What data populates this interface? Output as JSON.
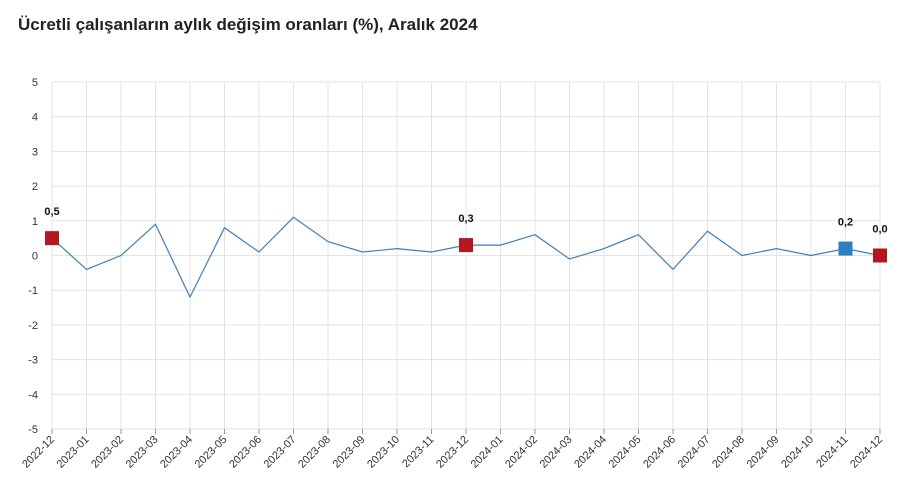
{
  "title": "Ücretli çalışanların aylık değişim oranları (%), Aralık 2024",
  "colors": {
    "line": "#3f7fbd",
    "highlight_red": "#b2181f",
    "highlight_blue": "#2f7ec3",
    "grid": "#e3e3e3"
  },
  "chart_data": {
    "type": "line",
    "title": "Ücretli çalışanların aylık değişim oranları (%), Aralık 2024",
    "xlabel": "",
    "ylabel": "",
    "ylim": [
      -5,
      5
    ],
    "yticks": [
      "5",
      "4",
      "3",
      "2",
      "1",
      "0",
      "-1",
      "-2",
      "-3",
      "-4",
      "-5"
    ],
    "grid": true,
    "legend": "none",
    "categories": [
      "2022-12",
      "2023-01",
      "2023-02",
      "2023-03",
      "2023-04",
      "2023-05",
      "2023-06",
      "2023-07",
      "2023-08",
      "2023-09",
      "2023-10",
      "2023-11",
      "2023-12",
      "2024-01",
      "2024-02",
      "2024-03",
      "2024-04",
      "2024-05",
      "2024-06",
      "2024-07",
      "2024-08",
      "2024-09",
      "2024-10",
      "2024-11",
      "2024-12"
    ],
    "series": [
      {
        "values": [
          0.5,
          -0.4,
          0.0,
          0.9,
          -1.2,
          0.8,
          0.1,
          1.1,
          0.4,
          0.1,
          0.2,
          0.1,
          0.3,
          0.3,
          0.6,
          -0.1,
          0.2,
          0.6,
          -0.4,
          0.7,
          0.0,
          0.2,
          0.0,
          0.2,
          0.0
        ]
      }
    ],
    "highlights": [
      {
        "index": 0,
        "label": "0,5",
        "color": "red"
      },
      {
        "index": 12,
        "label": "0,3",
        "color": "red"
      },
      {
        "index": 23,
        "label": "0,2",
        "color": "blue"
      },
      {
        "index": 24,
        "label": "0,0",
        "color": "red"
      }
    ]
  }
}
